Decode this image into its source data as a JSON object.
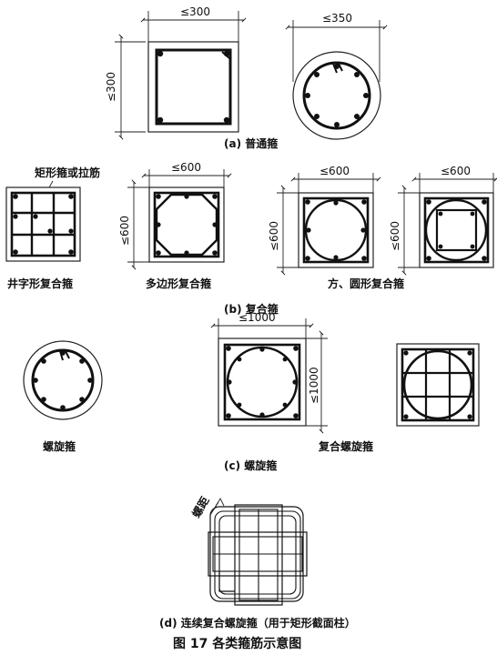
{
  "section_a": {
    "caption": "(a) 普通箍",
    "dim_square_width": "≤300",
    "dim_square_height": "≤300",
    "dim_circle_width": "≤350"
  },
  "section_b": {
    "caption": "(b) 复合箍",
    "callout": "矩形箍或拉筋",
    "dim_poly_width": "≤600",
    "dim_poly_height": "≤600",
    "dim_round1_width": "≤600",
    "dim_round1_height": "≤600",
    "dim_round2_width": "≤600",
    "dim_round2_height": "≤600",
    "label_grid": "井字形复合箍",
    "label_poly": "多边形复合箍",
    "label_round": "方、圆形复合箍"
  },
  "section_c": {
    "caption": "(c) 螺旋箍",
    "dim_width": "≤1000",
    "dim_height": "≤1000",
    "label_spiral": "螺旋箍",
    "label_composite": "复合螺旋箍"
  },
  "section_d": {
    "caption": "(d) 连续复合螺旋箍（用于矩形截面柱）",
    "pitch_label": "螺距"
  },
  "figure_title": "图 17    各类箍筋示意图"
}
